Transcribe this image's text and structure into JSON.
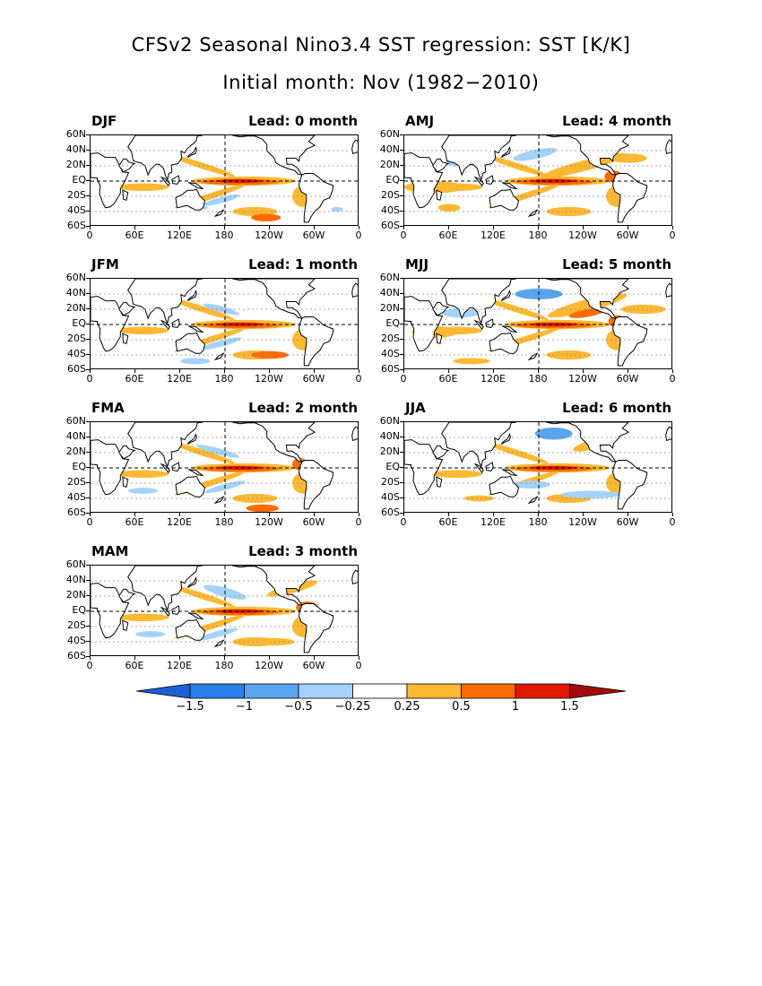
{
  "title": "CFSv2 Seasonal Nino3.4 SST regression: SST [K/K]",
  "subtitle": "Initial month: Nov (1982−2010)",
  "y_axis_labels": [
    "60N",
    "40N",
    "20N",
    "EQ",
    "20S",
    "40S",
    "60S"
  ],
  "x_axis_labels": [
    "0",
    "60E",
    "120E",
    "180",
    "120W",
    "60W",
    "0"
  ],
  "panels": [
    {
      "season": "DJF",
      "lead": "Lead: 0 month"
    },
    {
      "season": "AMJ",
      "lead": "Lead: 4 month"
    },
    {
      "season": "JFM",
      "lead": "Lead: 1 month"
    },
    {
      "season": "MJJ",
      "lead": "Lead: 5 month"
    },
    {
      "season": "FMA",
      "lead": "Lead: 2 month"
    },
    {
      "season": "JJA",
      "lead": "Lead: 6 month"
    },
    {
      "season": "MAM",
      "lead": "Lead: 3 month"
    }
  ],
  "colorbar": {
    "labels": [
      "−1.5",
      "−1",
      "−0.5",
      "−0.25",
      "0.25",
      "0.5",
      "1",
      "1.5"
    ],
    "colors": [
      "#1f5fd6",
      "#2c7ee8",
      "#59a4ef",
      "#a3d3fb",
      "#ffffff",
      "#fdb833",
      "#fc6c00",
      "#e01a00",
      "#a50a0a"
    ]
  },
  "chart_data": {
    "type": "heatmap",
    "levels": [
      -1.5,
      -1,
      -0.5,
      -0.25,
      0.25,
      0.5,
      1,
      1.5
    ],
    "lon_range": [
      0,
      360
    ],
    "lat_range": [
      -60,
      60
    ]
  }
}
